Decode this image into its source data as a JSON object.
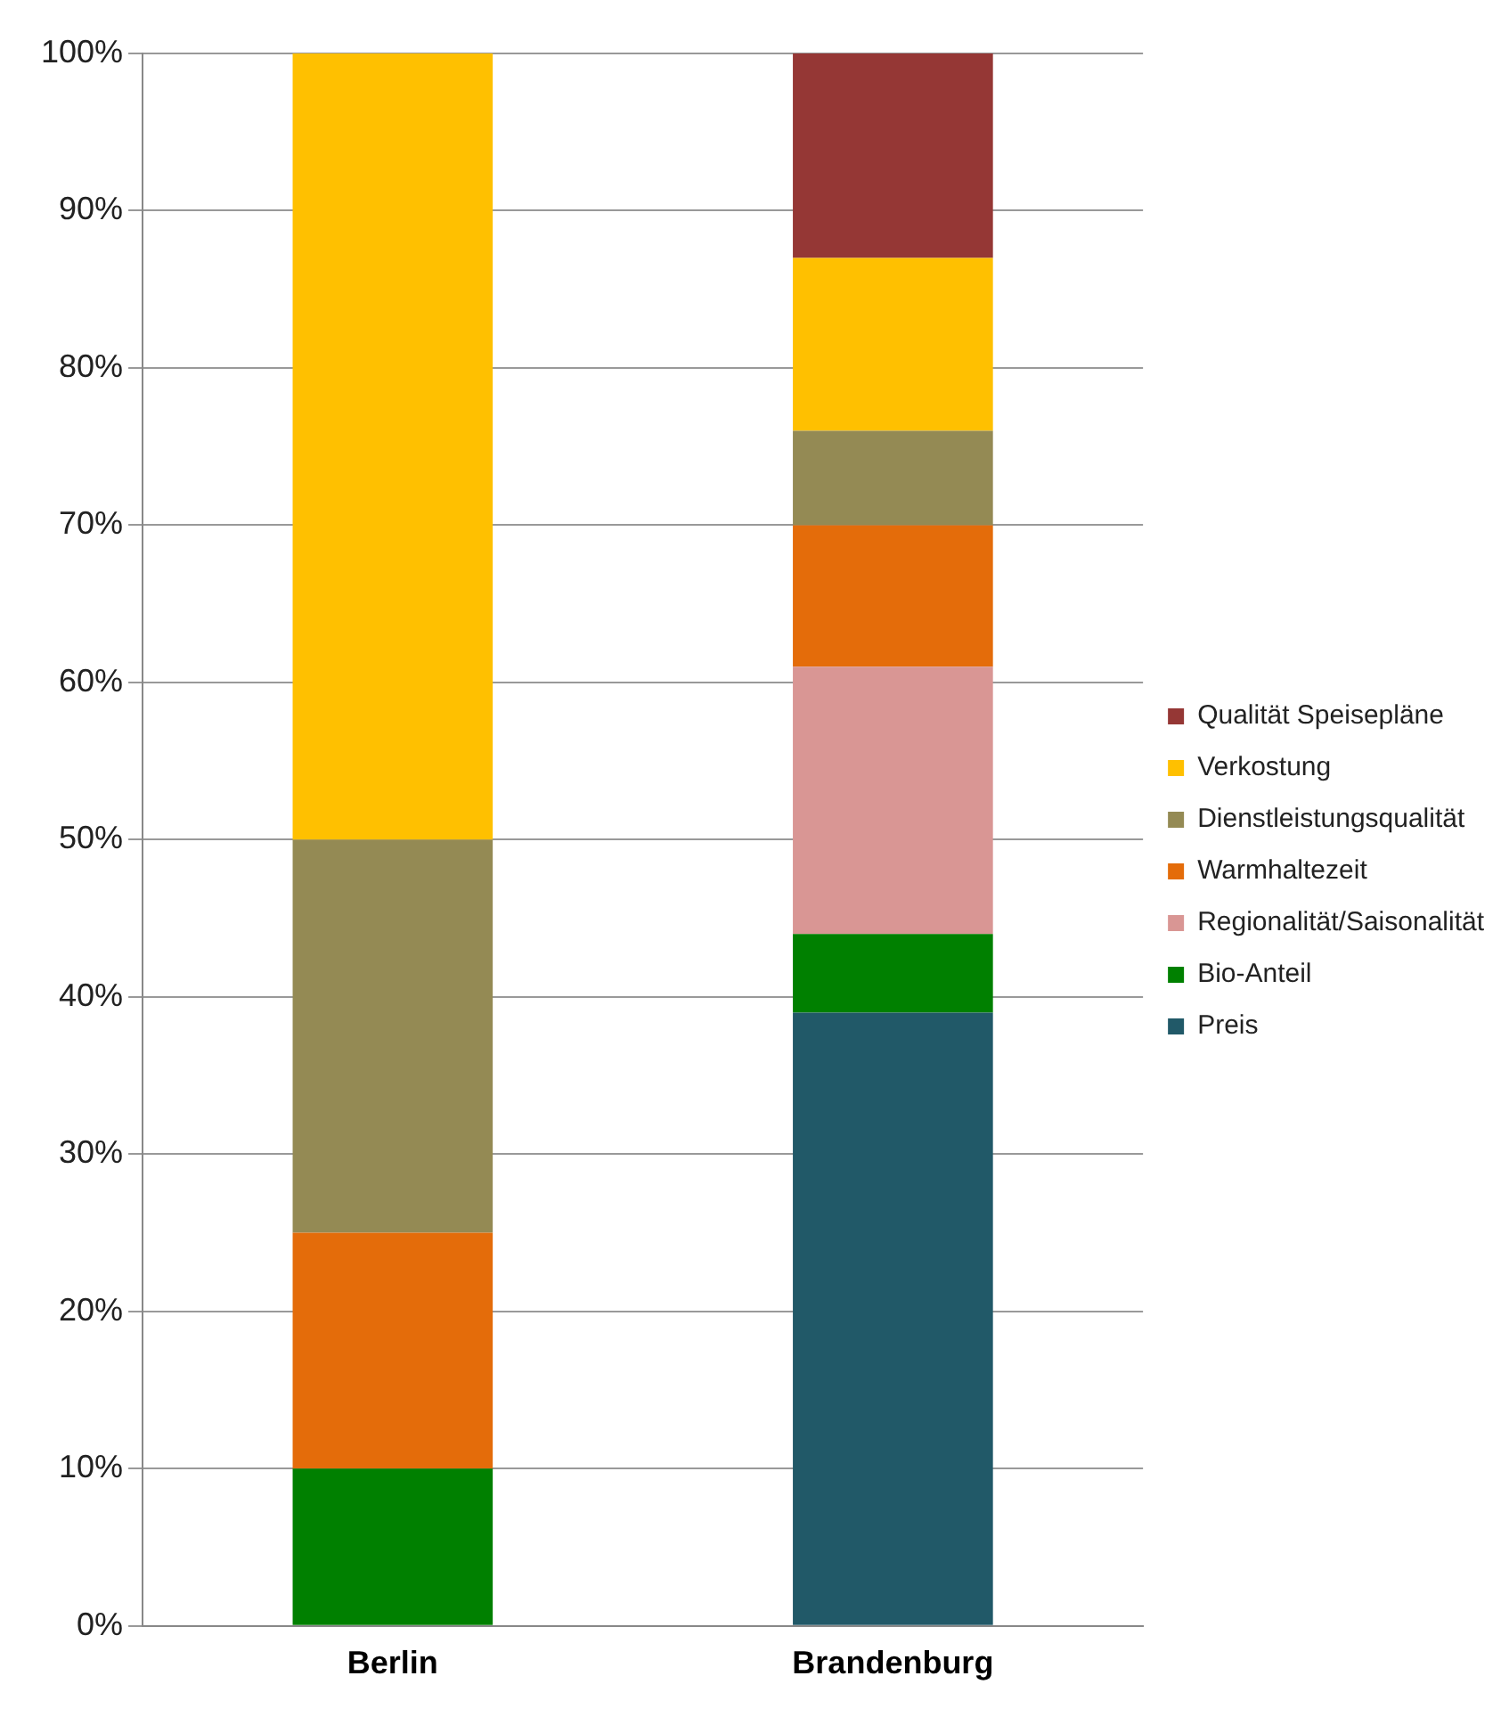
{
  "chart_data": {
    "type": "bar",
    "stacked": true,
    "categories": [
      "Berlin",
      "Brandenburg"
    ],
    "series": [
      {
        "name": "Preis",
        "color": "#215968",
        "values": [
          0,
          39
        ]
      },
      {
        "name": "Bio-Anteil",
        "color": "#008000",
        "values": [
          10,
          5
        ]
      },
      {
        "name": "Regionalität/Saisonalität",
        "color": "#d99694",
        "values": [
          0,
          17
        ]
      },
      {
        "name": "Warmhaltezeit",
        "color": "#e46c0a",
        "values": [
          15,
          9
        ]
      },
      {
        "name": "Dienstleistungsqualität",
        "color": "#948a54",
        "values": [
          25,
          6
        ]
      },
      {
        "name": "Verkostung",
        "color": "#ffc000",
        "values": [
          50,
          11
        ]
      },
      {
        "name": "Qualität Speisepläne",
        "color": "#953735",
        "values": [
          0,
          13
        ]
      }
    ],
    "ylim": [
      0,
      100
    ],
    "yticks": [
      {
        "value": 0,
        "label": "0%"
      },
      {
        "value": 10,
        "label": "10%"
      },
      {
        "value": 20,
        "label": "20%"
      },
      {
        "value": 30,
        "label": "30%"
      },
      {
        "value": 40,
        "label": "40%"
      },
      {
        "value": 50,
        "label": "50%"
      },
      {
        "value": 60,
        "label": "60%"
      },
      {
        "value": 70,
        "label": "70%"
      },
      {
        "value": 80,
        "label": "80%"
      },
      {
        "value": 90,
        "label": "90%"
      },
      {
        "value": 100,
        "label": "100%"
      }
    ],
    "grid": "y",
    "legend": "right"
  }
}
